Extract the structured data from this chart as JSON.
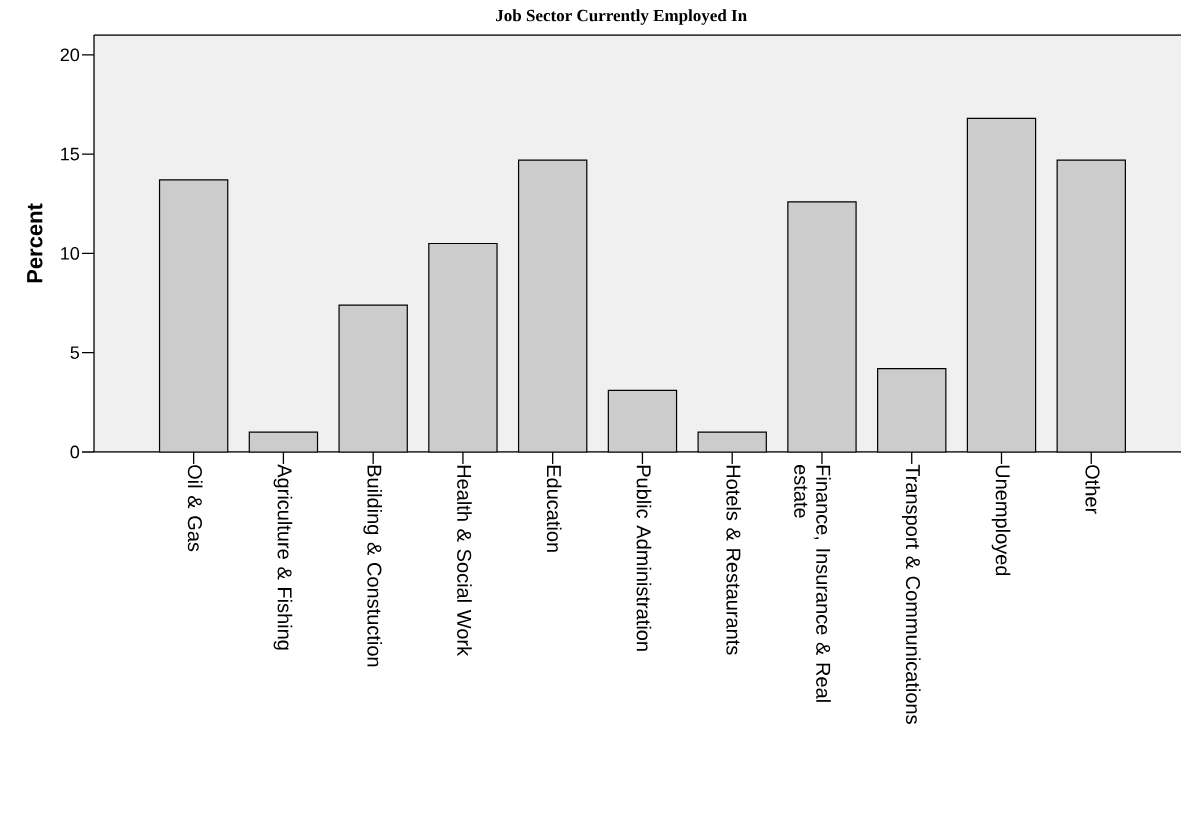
{
  "chart_data": {
    "type": "bar",
    "title": "Job Sector Currently Employed In",
    "ylabel": "Percent",
    "categories": [
      "Oil & Gas",
      "Agriculture & Fishing",
      "Building & Constuction",
      "Health & Social Work",
      "Education",
      "Public Administration",
      "Hotels & Restaurants",
      "Finance, Insurance & Real estate",
      "Transport & Communications",
      "Unemployed",
      "Other"
    ],
    "values": [
      13.7,
      1.0,
      7.4,
      10.5,
      14.7,
      3.1,
      1.0,
      12.6,
      4.2,
      16.8,
      14.7
    ],
    "color": "#cccccc",
    "ylim": [
      0,
      21
    ],
    "yticks": [
      0,
      5,
      10,
      15,
      20
    ],
    "grid": false
  }
}
